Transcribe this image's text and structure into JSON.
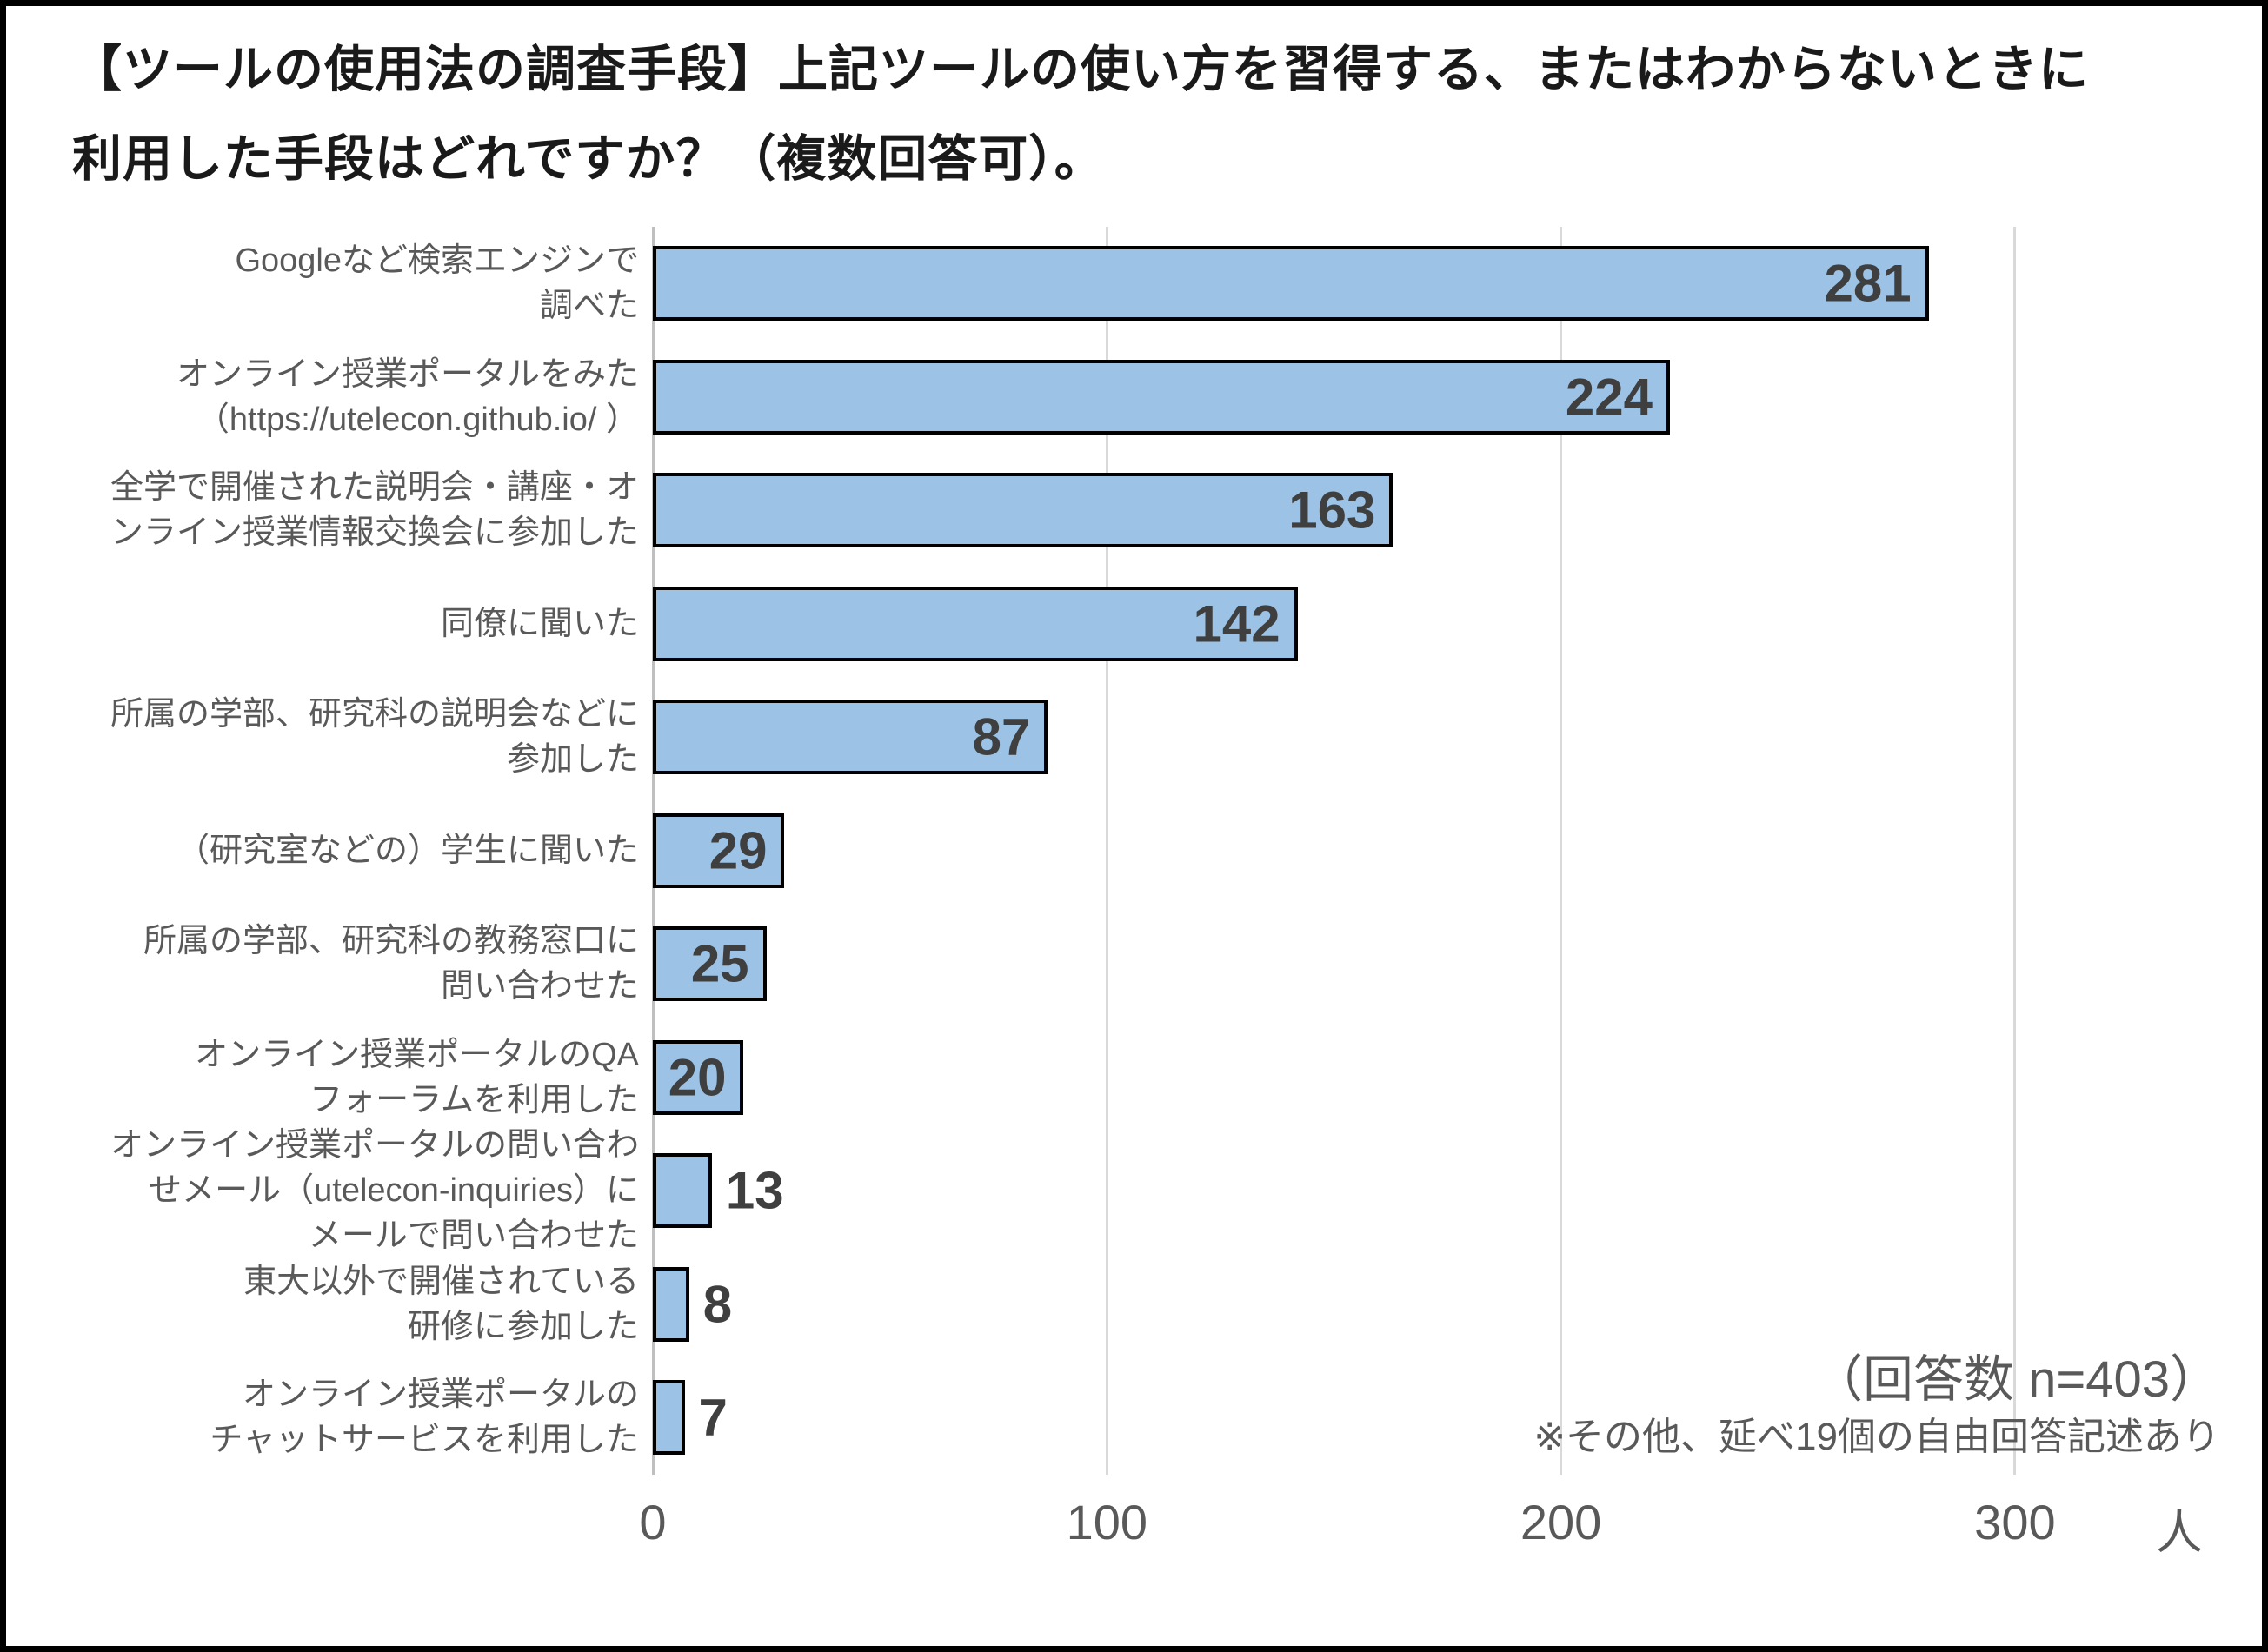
{
  "title": "【ツールの使用法の調査手段】上記ツールの使い方を習得する、またはわからないときに\n利用した手段はどれですか？（複数回答可）。",
  "chart_data": {
    "type": "bar",
    "orientation": "horizontal",
    "title": "【ツールの使用法の調査手段】上記ツールの使い方を習得する、またはわからないときに利用した手段はどれですか？（複数回答可）。",
    "categories": [
      "Googleなど検索エンジンで\n調べた",
      "オンライン授業ポータルをみた\n（https://utelecon.github.io/ ）",
      "全学で開催された説明会・講座・オ\nンライン授業情報交換会に参加した",
      "同僚に聞いた",
      "所属の学部、研究科の説明会などに\n参加した",
      "（研究室などの）学生に聞いた",
      "所属の学部、研究科の教務窓口に\n問い合わせた",
      "オンライン授業ポータルのQA\nフォーラムを利用した",
      "オンライン授業ポータルの問い合わ\nせメール（utelecon-inquiries）に\nメールで問い合わせた",
      "東大以外で開催されている\n研修に参加した",
      "オンライン授業ポータルの\nチャットサービスを利用した"
    ],
    "values": [
      281,
      224,
      163,
      142,
      87,
      29,
      25,
      20,
      13,
      8,
      7
    ],
    "x_ticks": [
      0,
      100,
      200,
      300
    ],
    "x_unit": "人",
    "xlim": [
      0,
      350
    ],
    "grid": "vertical-gridlines",
    "legend": "none",
    "annotations": {
      "line1": "（回答数 n=403）",
      "line2": "※その他、延べ19個の自由回答記述あり"
    },
    "colors": {
      "bar_fill": "#9CC3E6",
      "bar_border": "#000000",
      "value_label": "#3F3F3F",
      "category_label": "#595959",
      "tick_label": "#595959",
      "annotation": "#595959",
      "gridline": "#D9D9D9",
      "axis_line": "#BFBFBF",
      "title": "#1A1A1A",
      "frame_border": "#000000",
      "background": "#FFFFFF"
    }
  }
}
